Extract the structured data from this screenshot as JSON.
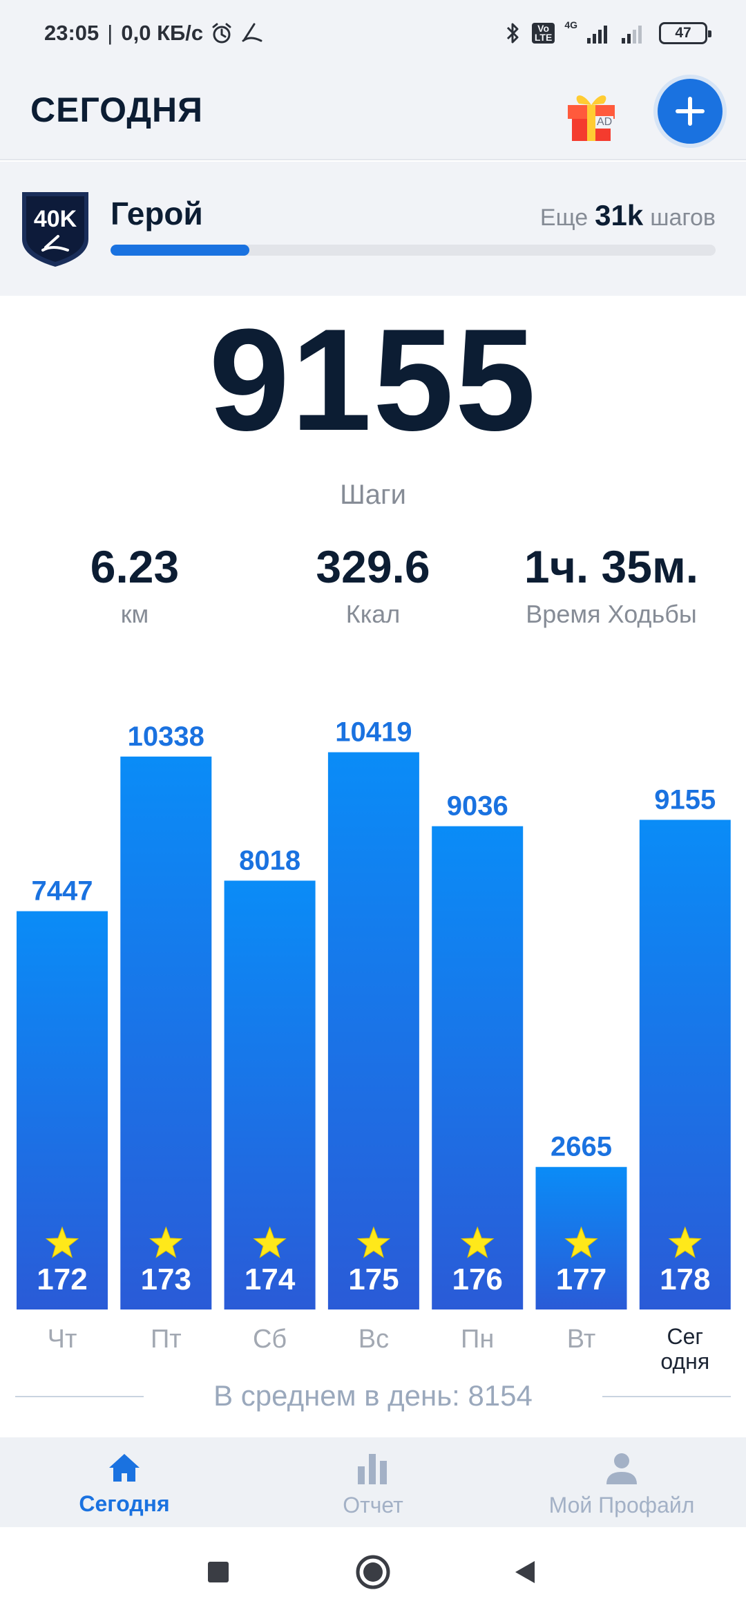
{
  "status_bar": {
    "time": "23:05",
    "network_speed": "0,0 КБ/с",
    "network_type": "4G",
    "volte": "Vo LTE",
    "battery": "47",
    "icons": [
      "alarm-icon",
      "app-notification-icon",
      "bluetooth-icon",
      "signal-icon",
      "battery-icon"
    ]
  },
  "header": {
    "title": "СЕГОДНЯ",
    "gift_ad_label": "AD"
  },
  "level": {
    "badge_text": "40K",
    "name": "Герой",
    "remaining_prefix": "Еще",
    "remaining_value": "31k",
    "remaining_suffix": "шагов",
    "progress_fraction": 0.23
  },
  "steps": {
    "value": "9155",
    "label": "Шаги"
  },
  "stats": [
    {
      "value": "6.23",
      "label": "км"
    },
    {
      "value": "329.6",
      "label": "Ккал"
    },
    {
      "value": "1ч. 35м.",
      "label": "Время Ходьбы"
    }
  ],
  "chart_data": {
    "type": "bar",
    "categories": [
      "Чт",
      "Пт",
      "Сб",
      "Вс",
      "Пн",
      "Вт",
      "Сег одня"
    ],
    "values": [
      7447,
      10338,
      8018,
      10419,
      9036,
      2665,
      9155
    ],
    "badges": [
      "172",
      "173",
      "174",
      "175",
      "176",
      "177",
      "178"
    ],
    "today_label_lines": [
      "Сег",
      "одня"
    ],
    "bar_color_top": "#0a8cf7",
    "bar_color_bottom": "#2a5bd7"
  },
  "average": {
    "text": "В среднем в день: 8154"
  },
  "bottom_nav": {
    "items": [
      {
        "label": "Сегодня",
        "icon": "home-icon",
        "active": true
      },
      {
        "label": "Отчет",
        "icon": "bar-chart-icon",
        "active": false
      },
      {
        "label": "Мой Профайл",
        "icon": "profile-icon",
        "active": false
      }
    ]
  },
  "colors": {
    "accent": "#1a72e0",
    "text_dark": "#0c1d33",
    "text_muted": "#868c96"
  }
}
